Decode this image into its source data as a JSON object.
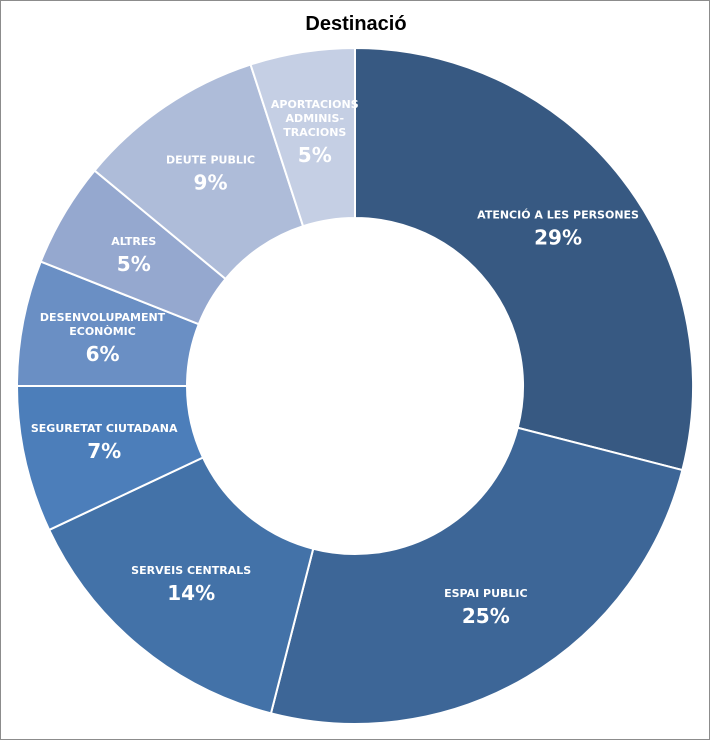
{
  "chart_data": {
    "type": "pie",
    "title": "Destinació",
    "donut": true,
    "slices": [
      {
        "label": "ATENCIÓ A LES PERSONES",
        "value": 29,
        "value_label": "29%",
        "color": "#375982"
      },
      {
        "label": "ESPAI PUBLIC",
        "value": 25,
        "value_label": "25%",
        "color": "#3d6697"
      },
      {
        "label": "SERVEIS CENTRALS",
        "value": 14,
        "value_label": "14%",
        "color": "#4372a8"
      },
      {
        "label": "SEGURETAT CIUTADANA",
        "value": 7,
        "value_label": "7%",
        "color": "#4c7eba"
      },
      {
        "label": "DESENVOLUPAMENT ECONÒMIC",
        "value": 6,
        "value_label": "6%",
        "color": "#6a8fc4"
      },
      {
        "label": "ALTRES",
        "value": 5,
        "value_label": "5%",
        "color": "#95a8cf"
      },
      {
        "label": "DEUTE PUBLIC",
        "value": 9,
        "value_label": "9%",
        "color": "#aebcd9"
      },
      {
        "label": "APORTACIONS ADMINIS-TRACIONS",
        "value": 5,
        "value_label": "5%",
        "color": "#c5cfe4"
      }
    ]
  }
}
